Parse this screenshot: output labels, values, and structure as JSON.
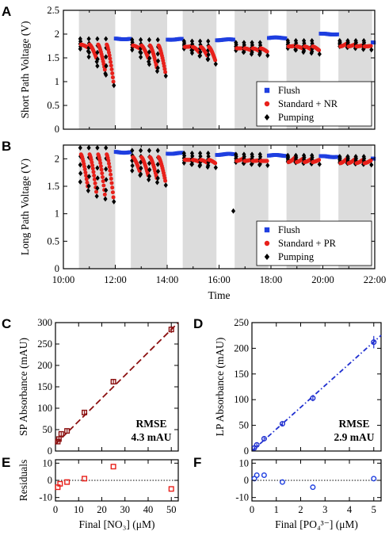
{
  "colors": {
    "flush": "#1f3fe0",
    "standard": "#e8201a",
    "pumping": "#000000",
    "shade": "#dcdcdc",
    "fit_nitrate": "#8b1010",
    "fit_phosphate": "#1f2fd0"
  },
  "chart_data": [
    {
      "id": "A",
      "panel": "A",
      "type": "scatter",
      "title": "",
      "ylabel": "Short Path Voltage (V)",
      "xlabel": "",
      "xlim": [
        10,
        22
      ],
      "ylim": [
        0,
        2.5
      ],
      "yticks": [
        "0",
        "0.5",
        "1",
        "1.5",
        "2",
        "2.5"
      ],
      "shaded_windows": [
        [
          10.6,
          12.0
        ],
        [
          12.6,
          14.0
        ],
        [
          14.6,
          15.9
        ],
        [
          16.6,
          17.9
        ],
        [
          18.6,
          19.9
        ],
        [
          20.6,
          21.9
        ]
      ],
      "flush_segments": [
        [
          12.0,
          12.6,
          1.9
        ],
        [
          14.0,
          14.6,
          1.89
        ],
        [
          15.9,
          16.6,
          1.88
        ],
        [
          17.9,
          18.6,
          1.92
        ],
        [
          19.9,
          20.6,
          2.0
        ],
        [
          21.9,
          22.0,
          1.82
        ]
      ],
      "cycles": [
        {
          "start": 10.65,
          "n": 4,
          "period": 0.33,
          "base": 1.9,
          "drop": [
            1.72,
            1.5,
            1.25,
            1.0
          ]
        },
        {
          "start": 12.65,
          "n": 4,
          "period": 0.33,
          "base": 1.88,
          "drop": [
            1.7,
            1.5,
            1.3,
            1.2
          ]
        },
        {
          "start": 14.65,
          "n": 4,
          "period": 0.31,
          "base": 1.85,
          "drop": [
            1.74,
            1.62,
            1.55,
            1.45
          ]
        },
        {
          "start": 16.65,
          "n": 4,
          "period": 0.31,
          "base": 1.82,
          "drop": [
            1.7,
            1.66,
            1.65,
            1.63
          ]
        },
        {
          "start": 18.65,
          "n": 4,
          "period": 0.31,
          "base": 1.86,
          "drop": [
            1.75,
            1.7,
            1.68,
            1.66
          ]
        },
        {
          "start": 20.65,
          "n": 4,
          "period": 0.31,
          "base": 1.86,
          "drop": [
            1.8,
            1.78,
            1.76,
            1.75
          ]
        }
      ],
      "legend": {
        "position": "bottom-right",
        "entries": [
          {
            "label": "Flush",
            "marker": "square",
            "color": "#1f3fe0"
          },
          {
            "label": "Standard + NR",
            "marker": "circle",
            "color": "#e8201a"
          },
          {
            "label": "Pumping",
            "marker": "diamond",
            "color": "#000000"
          }
        ]
      }
    },
    {
      "id": "B",
      "panel": "B",
      "type": "scatter",
      "title": "",
      "ylabel": "Long Path Voltage (V)",
      "xlabel": "Time",
      "xlim": [
        10,
        22
      ],
      "ylim": [
        0,
        2.25
      ],
      "yticks": [
        "0",
        "0.5",
        "1",
        "1.5",
        "2"
      ],
      "xticklabels": [
        "10:00",
        "12:00",
        "14:00",
        "16:00",
        "18:00",
        "20:00",
        "22:00"
      ],
      "xtickvalues": [
        10,
        12,
        14,
        16,
        18,
        20,
        22
      ],
      "shaded_windows": [
        [
          10.6,
          12.0
        ],
        [
          12.6,
          14.0
        ],
        [
          14.6,
          15.9
        ],
        [
          16.6,
          17.9
        ],
        [
          18.6,
          19.9
        ],
        [
          20.6,
          21.9
        ]
      ],
      "flush_segments": [
        [
          12.0,
          12.6,
          2.12
        ],
        [
          14.0,
          14.6,
          2.1
        ],
        [
          15.9,
          16.6,
          2.08
        ],
        [
          17.9,
          18.6,
          2.06
        ],
        [
          19.9,
          20.6,
          2.04
        ],
        [
          21.9,
          22.0,
          2.0
        ]
      ],
      "cycles": [
        {
          "start": 10.65,
          "n": 4,
          "period": 0.33,
          "base": 2.2,
          "drop": [
            1.5,
            1.4,
            1.35,
            1.3
          ]
        },
        {
          "start": 12.65,
          "n": 4,
          "period": 0.33,
          "base": 2.15,
          "drop": [
            1.78,
            1.7,
            1.65,
            1.6
          ]
        },
        {
          "start": 14.65,
          "n": 4,
          "period": 0.31,
          "base": 2.1,
          "drop": [
            1.98,
            1.95,
            1.93,
            1.92
          ]
        },
        {
          "start": 16.65,
          "n": 4,
          "period": 0.31,
          "base": 2.08,
          "drop": [
            2.0,
            1.98,
            1.97,
            1.96
          ]
        },
        {
          "start": 18.65,
          "n": 4,
          "period": 0.31,
          "base": 2.06,
          "drop": [
            2.02,
            2.0,
            1.99,
            1.98
          ]
        },
        {
          "start": 20.65,
          "n": 4,
          "period": 0.31,
          "base": 2.04,
          "drop": [
            2.0,
            1.99,
            1.98,
            1.97
          ]
        }
      ],
      "outliers": [
        [
          16.55,
          1.05
        ]
      ],
      "legend": {
        "position": "bottom-right",
        "entries": [
          {
            "label": "Flush",
            "marker": "square",
            "color": "#1f3fe0"
          },
          {
            "label": "Standard + PR",
            "marker": "circle",
            "color": "#e8201a"
          },
          {
            "label": "Pumping",
            "marker": "diamond",
            "color": "#000000"
          }
        ]
      }
    },
    {
      "id": "C",
      "panel": "C",
      "type": "scatter",
      "title": "",
      "ylabel": "SP Absorbance (mAU)",
      "xlabel": "",
      "xlim": [
        0,
        53
      ],
      "ylim": [
        0,
        300
      ],
      "xticks": [
        0,
        10,
        20,
        30,
        40,
        50
      ],
      "yticks": [
        0,
        50,
        100,
        150,
        200,
        250,
        300
      ],
      "marker": "square-open",
      "points": [
        {
          "x": 1.0,
          "y": 22,
          "err": 4
        },
        {
          "x": 1.5,
          "y": 28,
          "err": 4
        },
        {
          "x": 2.5,
          "y": 40,
          "err": 4
        },
        {
          "x": 5.0,
          "y": 47,
          "err": 4
        },
        {
          "x": 12.5,
          "y": 90,
          "err": 4
        },
        {
          "x": 25.0,
          "y": 162,
          "err": 5
        },
        {
          "x": 50.0,
          "y": 284,
          "err": 8
        }
      ],
      "fit": {
        "slope": 5.45,
        "intercept": 16,
        "style": "dashed"
      },
      "annotation": {
        "line1": "RMSE",
        "line2": "4.3 mAU"
      }
    },
    {
      "id": "D",
      "panel": "D",
      "type": "scatter",
      "title": "",
      "ylabel": "LP Absorbance (mAU)",
      "xlabel": "",
      "xlim": [
        0,
        5.3
      ],
      "ylim": [
        0,
        250
      ],
      "xticks": [
        0,
        1,
        2,
        3,
        4,
        5
      ],
      "yticks": [
        0,
        50,
        100,
        150,
        200,
        250
      ],
      "marker": "circle-open",
      "points": [
        {
          "x": 0.1,
          "y": 6,
          "err": 3
        },
        {
          "x": 0.2,
          "y": 12,
          "err": 3
        },
        {
          "x": 0.5,
          "y": 24,
          "err": 3
        },
        {
          "x": 1.25,
          "y": 53,
          "err": 4
        },
        {
          "x": 2.5,
          "y": 103,
          "err": 6
        },
        {
          "x": 5.0,
          "y": 212,
          "err": 12
        }
      ],
      "fit": {
        "slope": 42.5,
        "intercept": 0,
        "style": "dash-dot"
      },
      "annotation": {
        "line1": "RMSE",
        "line2": "2.9 mAU"
      }
    },
    {
      "id": "E",
      "panel": "E",
      "type": "scatter",
      "title": "",
      "ylabel": "Residuals",
      "xlabel": "Final [NO₃] (μM)",
      "xlim": [
        0,
        53
      ],
      "ylim": [
        -12,
        12
      ],
      "xticks": [
        0,
        10,
        20,
        30,
        40,
        50
      ],
      "yticks": [
        -10,
        0,
        10
      ],
      "marker": "square-open",
      "points": [
        {
          "x": 1.0,
          "y": -4
        },
        {
          "x": 2.0,
          "y": -2
        },
        {
          "x": 5.0,
          "y": -1
        },
        {
          "x": 12.5,
          "y": 1
        },
        {
          "x": 25.0,
          "y": 8
        },
        {
          "x": 50.0,
          "y": -5
        }
      ]
    },
    {
      "id": "F",
      "panel": "F",
      "type": "scatter",
      "title": "",
      "ylabel": "",
      "xlabel": "Final [PO₄³⁻] (μM)",
      "xlim": [
        0,
        5.3
      ],
      "ylim": [
        -12,
        12
      ],
      "xticks": [
        0,
        1,
        2,
        3,
        4,
        5
      ],
      "yticks": [
        -10,
        0,
        10
      ],
      "marker": "circle-open",
      "points": [
        {
          "x": 0.1,
          "y": 1
        },
        {
          "x": 0.2,
          "y": 3
        },
        {
          "x": 0.5,
          "y": 3
        },
        {
          "x": 1.25,
          "y": -1
        },
        {
          "x": 2.5,
          "y": -4
        },
        {
          "x": 5.0,
          "y": 1
        }
      ]
    }
  ]
}
